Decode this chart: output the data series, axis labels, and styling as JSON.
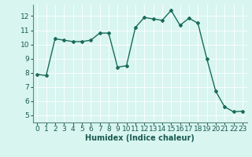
{
  "x": [
    0,
    1,
    2,
    3,
    4,
    5,
    6,
    7,
    8,
    9,
    10,
    11,
    12,
    13,
    14,
    15,
    16,
    17,
    18,
    19,
    20,
    21,
    22,
    23
  ],
  "y": [
    7.9,
    7.8,
    10.4,
    10.3,
    10.2,
    10.2,
    10.3,
    10.8,
    10.8,
    8.4,
    8.5,
    11.2,
    11.9,
    11.8,
    11.7,
    12.4,
    11.35,
    11.85,
    11.5,
    9.0,
    6.7,
    5.6,
    5.25,
    5.3
  ],
  "line_color": "#1a6b5a",
  "marker": "D",
  "marker_size": 2,
  "linewidth": 1.0,
  "xlabel": "Humidex (Indice chaleur)",
  "ylabel": "",
  "xlim": [
    -0.5,
    23.5
  ],
  "ylim": [
    4.5,
    12.8
  ],
  "yticks": [
    5,
    6,
    7,
    8,
    9,
    10,
    11,
    12
  ],
  "xticks": [
    0,
    1,
    2,
    3,
    4,
    5,
    6,
    7,
    8,
    9,
    10,
    11,
    12,
    13,
    14,
    15,
    16,
    17,
    18,
    19,
    20,
    21,
    22,
    23
  ],
  "bg_color": "#d8f5f0",
  "grid_color": "#ffffff",
  "axis_color": "#5a8a80",
  "tick_label_color": "#1a5a50",
  "xlabel_fontsize": 7,
  "tick_fontsize": 6.5
}
